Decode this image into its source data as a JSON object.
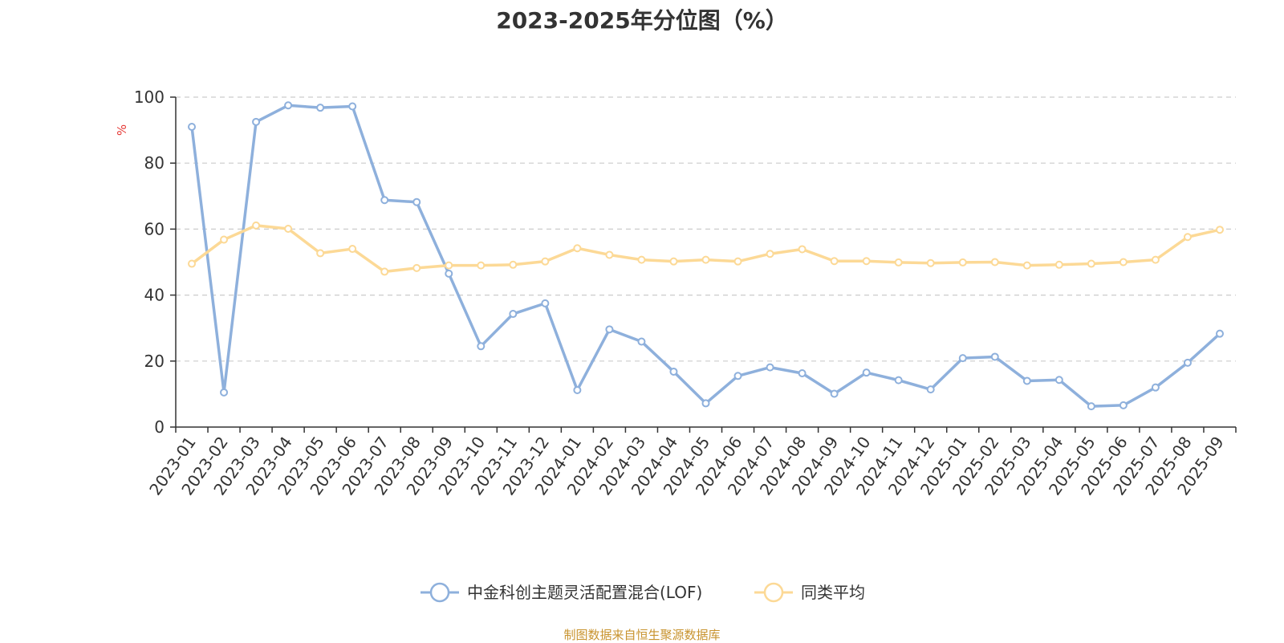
{
  "chart_data": {
    "type": "line",
    "title": "2023-2025年分位图（%）",
    "ylabel": "%",
    "xlabel": "",
    "ylim": [
      0,
      100
    ],
    "yticks": [
      0,
      20,
      40,
      60,
      80,
      100
    ],
    "grid": true,
    "legend_position": "bottom",
    "categories": [
      "2023-01",
      "2023-02",
      "2023-03",
      "2023-04",
      "2023-05",
      "2023-06",
      "2023-07",
      "2023-08",
      "2023-09",
      "2023-10",
      "2023-11",
      "2023-12",
      "2024-01",
      "2024-02",
      "2024-03",
      "2024-04",
      "2024-05",
      "2024-06",
      "2024-07",
      "2024-08",
      "2024-09",
      "2024-10",
      "2024-11",
      "2024-12",
      "2025-01",
      "2025-02",
      "2025-03",
      "2025-04",
      "2025-05",
      "2025-06",
      "2025-07",
      "2025-08",
      "2025-09"
    ],
    "series": [
      {
        "name": "中金科创主题灵活配置混合(LOF)",
        "color": "#8eb0dc",
        "values": [
          91,
          10.5,
          92.5,
          97.5,
          96.8,
          97.2,
          68.8,
          68.2,
          46.5,
          24.5,
          34.3,
          37.5,
          11.2,
          29.6,
          25.9,
          16.8,
          7.2,
          15.5,
          18.1,
          16.3,
          10.1,
          16.5,
          14.2,
          11.4,
          20.9,
          21.3,
          14.0,
          14.3,
          6.3,
          6.6,
          12.0,
          19.5,
          28.3
        ]
      },
      {
        "name": "同类平均",
        "color": "#fcd996",
        "values": [
          49.5,
          56.8,
          61.1,
          60.1,
          52.7,
          54.0,
          47.1,
          48.2,
          49.0,
          49.0,
          49.2,
          50.2,
          54.2,
          52.2,
          50.7,
          50.2,
          50.7,
          50.2,
          52.5,
          53.9,
          50.3,
          50.3,
          49.9,
          49.7,
          49.9,
          50.0,
          49.0,
          49.2,
          49.5,
          50.0,
          50.7,
          57.6,
          59.8
        ]
      }
    ]
  },
  "source_note": "制图数据来自恒生聚源数据库"
}
